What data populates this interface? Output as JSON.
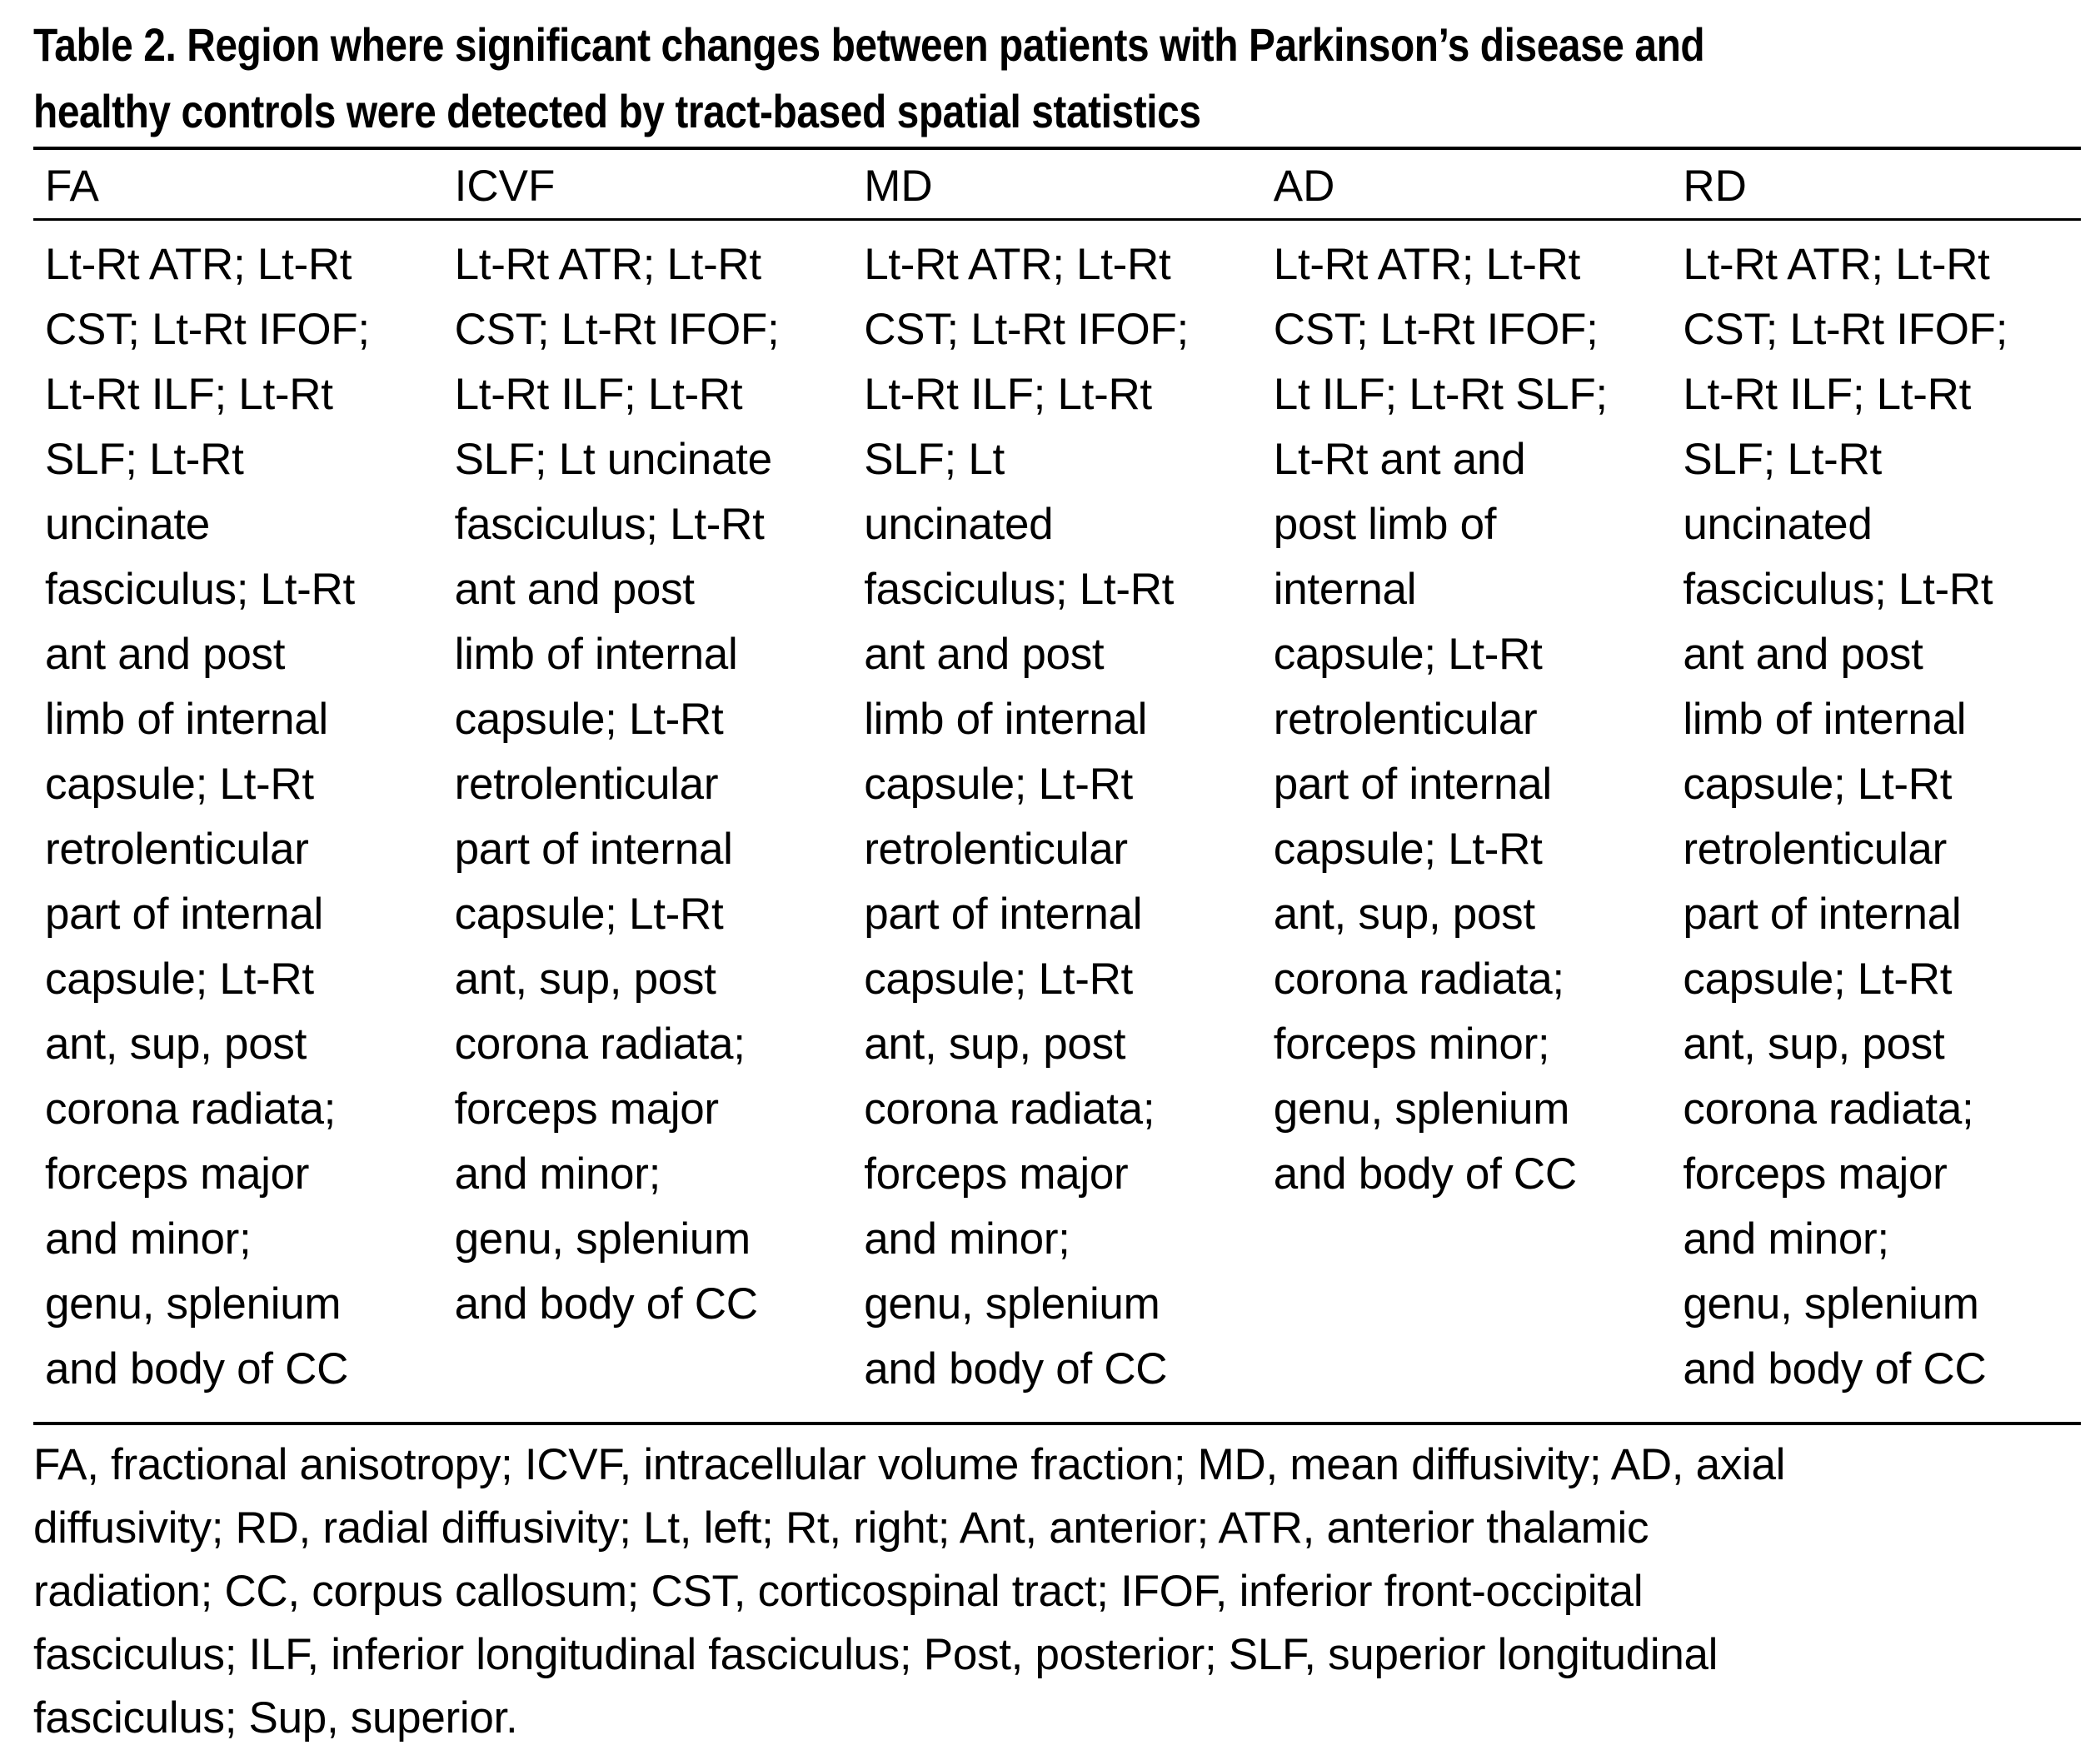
{
  "title": {
    "lines": [
      "Table 2. Region where significant changes between patients with Parkinson’s disease and",
      "healthy controls were detected by tract-based spatial statistics"
    ]
  },
  "table": {
    "columns": [
      {
        "header": "FA",
        "lines": [
          "Lt-Rt ATR; Lt-Rt",
          "CST; Lt-Rt IFOF;",
          "Lt-Rt ILF; Lt-Rt",
          "SLF; Lt-Rt",
          "uncinate",
          "fasciculus; Lt-Rt",
          "ant and post",
          "limb of internal",
          "capsule; Lt-Rt",
          "retrolenticular",
          "part of internal",
          "capsule; Lt-Rt",
          "ant, sup, post",
          "corona radiata;",
          "forceps major",
          "and minor;",
          "genu, splenium",
          "and body of CC"
        ]
      },
      {
        "header": "ICVF",
        "lines": [
          "Lt-Rt ATR; Lt-Rt",
          "CST; Lt-Rt IFOF;",
          "Lt-Rt ILF; Lt-Rt",
          "SLF; Lt uncinate",
          "fasciculus; Lt-Rt",
          "ant and post",
          "limb of internal",
          "capsule; Lt-Rt",
          "retrolenticular",
          "part of internal",
          "capsule; Lt-Rt",
          "ant, sup, post",
          "corona radiata;",
          "forceps major",
          "and minor;",
          "genu, splenium",
          "and body of CC"
        ]
      },
      {
        "header": "MD",
        "lines": [
          "Lt-Rt ATR; Lt-Rt",
          "CST; Lt-Rt IFOF;",
          "Lt-Rt ILF; Lt-Rt",
          "SLF; Lt",
          "uncinated",
          "fasciculus; Lt-Rt",
          "ant and post",
          "limb of internal",
          "capsule; Lt-Rt",
          "retrolenticular",
          "part of internal",
          "capsule; Lt-Rt",
          "ant, sup, post",
          "corona radiata;",
          "forceps major",
          "and minor;",
          "genu, splenium",
          "and body of CC"
        ]
      },
      {
        "header": "AD",
        "lines": [
          "Lt-Rt ATR; Lt-Rt",
          "CST; Lt-Rt IFOF;",
          "Lt ILF; Lt-Rt SLF;",
          "Lt-Rt ant and",
          "post limb of",
          "internal",
          "capsule; Lt-Rt",
          "retrolenticular",
          "part of internal",
          "capsule; Lt-Rt",
          "ant, sup, post",
          "corona radiata;",
          "forceps minor;",
          "genu, splenium",
          "and body of CC"
        ]
      },
      {
        "header": "RD",
        "lines": [
          "Lt-Rt ATR; Lt-Rt",
          "CST; Lt-Rt IFOF;",
          "Lt-Rt ILF; Lt-Rt",
          "SLF; Lt-Rt",
          "uncinated",
          "fasciculus; Lt-Rt",
          "ant and post",
          "limb of internal",
          "capsule; Lt-Rt",
          "retrolenticular",
          "part of internal",
          "capsule; Lt-Rt",
          "ant, sup, post",
          "corona radiata;",
          "forceps major",
          "and minor;",
          "genu, splenium",
          "and body of CC"
        ]
      }
    ]
  },
  "footnote": {
    "lines": [
      "FA, fractional anisotropy; ICVF, intracellular volume fraction; MD, mean diffusivity; AD, axial",
      "diffusivity; RD, radial diffusivity; Lt, left; Rt, right; Ant, anterior; ATR, anterior thalamic",
      "radiation; CC, corpus callosum; CST, corticospinal tract; IFOF, inferior front-occipital",
      "fasciculus; ILF, inferior longitudinal fasciculus; Post, posterior; SLF, superior longitudinal",
      "fasciculus; Sup, superior."
    ]
  }
}
